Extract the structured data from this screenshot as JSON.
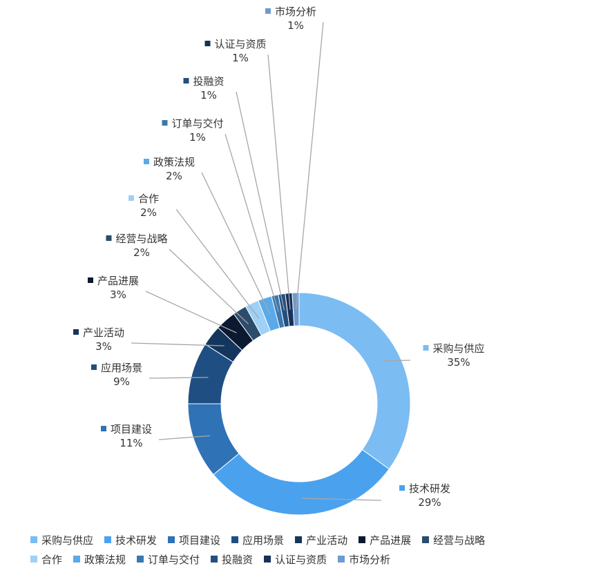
{
  "chart_data": {
    "type": "pie",
    "variant": "donut",
    "legend_position": "bottom",
    "slices": [
      {
        "label": "采购与供应",
        "value": 35,
        "display": "35%",
        "color": "#7bbcf2"
      },
      {
        "label": "技术研发",
        "value": 29,
        "display": "29%",
        "color": "#4aa2ee"
      },
      {
        "label": "项目建设",
        "value": 11,
        "display": "11%",
        "color": "#2f72b6"
      },
      {
        "label": "应用场景",
        "value": 9,
        "display": "9%",
        "color": "#1f4f82"
      },
      {
        "label": "产业活动",
        "value": 3,
        "display": "3%",
        "color": "#14365c"
      },
      {
        "label": "产品进展",
        "value": 3,
        "display": "3%",
        "color": "#0b1a30"
      },
      {
        "label": "经营与战略",
        "value": 2,
        "display": "2%",
        "color": "#2c4c6c"
      },
      {
        "label": "合作",
        "value": 2,
        "display": "2%",
        "color": "#9fd0f5"
      },
      {
        "label": "政策法规",
        "value": 2,
        "display": "2%",
        "color": "#5aaaea"
      },
      {
        "label": "订单与交付",
        "value": 1,
        "display": "1%",
        "color": "#3a78b0"
      },
      {
        "label": "投融资",
        "value": 1,
        "display": "1%",
        "color": "#234f7e"
      },
      {
        "label": "认证与资质",
        "value": 1,
        "display": "1%",
        "color": "#17325a"
      },
      {
        "label": "市场分析",
        "value": 1,
        "display": "1%",
        "color": "#6e9bd0"
      }
    ]
  }
}
